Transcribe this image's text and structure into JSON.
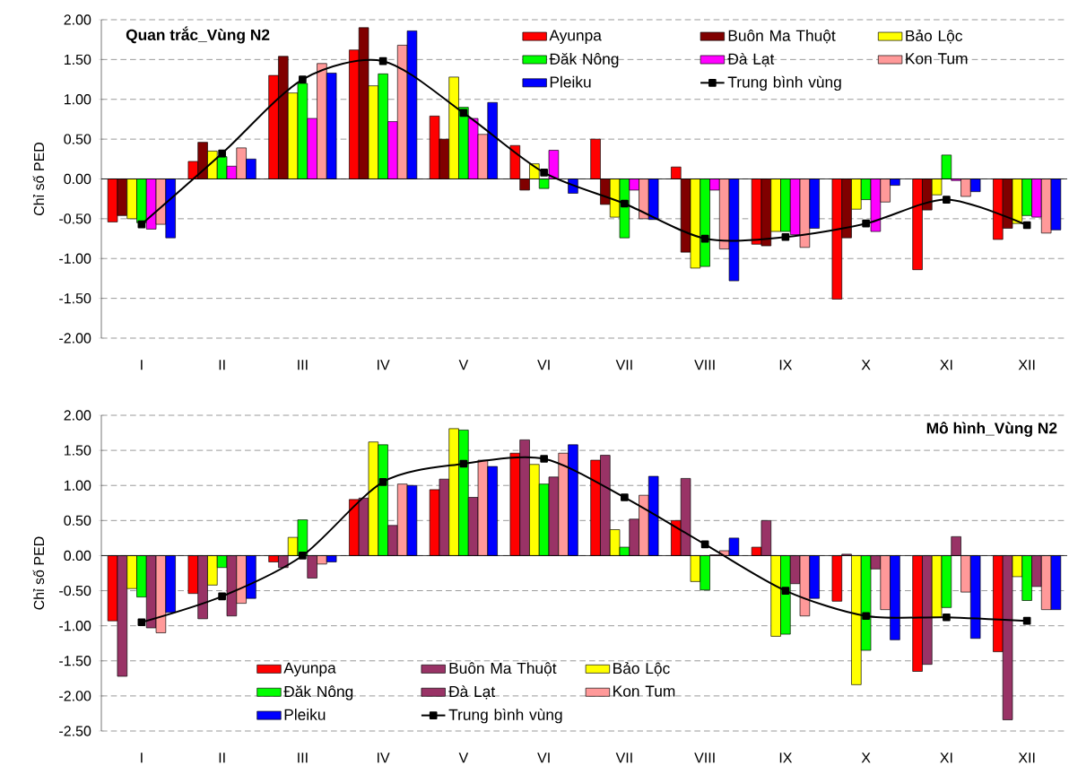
{
  "chart_data": [
    {
      "type": "bar",
      "title": "Quan trắc_Vùng N2",
      "ylabel": "Chỉ số PED",
      "categories": [
        "I",
        "II",
        "III",
        "IV",
        "V",
        "VI",
        "VII",
        "VIII",
        "IX",
        "X",
        "XI",
        "XII"
      ],
      "series": [
        {
          "name": "Ayunpa",
          "color": "#ff0000",
          "values": [
            -0.54,
            0.22,
            1.3,
            1.62,
            0.79,
            0.42,
            0.5,
            0.15,
            -0.82,
            -1.51,
            -1.14,
            -0.76
          ]
        },
        {
          "name": "Buôn Ma Thuột",
          "color": "#800000",
          "values": [
            -0.46,
            0.46,
            1.54,
            1.9,
            0.5,
            -0.14,
            -0.32,
            -0.92,
            -0.84,
            -0.74,
            -0.39,
            -0.62
          ]
        },
        {
          "name": "Bảo Lộc",
          "color": "#ffff00",
          "values": [
            -0.5,
            0.35,
            1.08,
            1.17,
            1.28,
            0.19,
            -0.48,
            -1.12,
            -0.66,
            -0.38,
            -0.2,
            -0.56
          ]
        },
        {
          "name": "Đăk Nông",
          "color": "#00ff00",
          "values": [
            -0.55,
            0.28,
            1.2,
            1.32,
            0.9,
            -0.12,
            -0.74,
            -1.1,
            -0.66,
            -0.26,
            0.3,
            -0.46
          ]
        },
        {
          "name": "Đà Lạt",
          "color": "#ff00ff",
          "values": [
            -0.63,
            0.16,
            0.76,
            0.72,
            0.76,
            0.36,
            -0.14,
            -0.14,
            -0.7,
            -0.66,
            -0.02,
            -0.48
          ]
        },
        {
          "name": "Kon Tum",
          "color": "#ff9999",
          "values": [
            -0.57,
            0.39,
            1.45,
            1.68,
            0.56,
            null,
            -0.5,
            -0.88,
            -0.86,
            -0.29,
            -0.22,
            -0.68
          ]
        },
        {
          "name": "Pleiku",
          "color": "#0000ff",
          "values": [
            -0.74,
            0.25,
            1.33,
            1.86,
            0.96,
            -0.18,
            -0.51,
            -1.28,
            -0.62,
            -0.08,
            -0.16,
            -0.64
          ]
        },
        {
          "name": "Trung bình vùng",
          "type": "line",
          "marker": "square",
          "color": "#000000",
          "values": [
            -0.57,
            0.32,
            1.25,
            1.48,
            0.83,
            0.08,
            -0.31,
            -0.75,
            -0.73,
            -0.56,
            -0.26,
            -0.58
          ]
        }
      ],
      "ylim": [
        -2,
        2
      ],
      "yticks": [
        {
          "value": -2,
          "label": "-2.00"
        },
        {
          "value": -1.5,
          "label": "-1.50"
        },
        {
          "value": -1,
          "label": "-1.00"
        },
        {
          "value": -0.5,
          "label": "-0.50"
        },
        {
          "value": 0,
          "label": "0.00"
        },
        {
          "value": 0.5,
          "label": "0.50"
        },
        {
          "value": 1,
          "label": "1.00"
        },
        {
          "value": 1.5,
          "label": "1.50"
        },
        {
          "value": 2,
          "label": "2.00"
        }
      ],
      "grid": "y",
      "legend": "top right"
    },
    {
      "type": "bar",
      "title": "Mô hình_Vùng N2",
      "ylabel": "Chỉ số PED",
      "categories": [
        "I",
        "II",
        "III",
        "IV",
        "V",
        "VI",
        "VII",
        "VIII",
        "IX",
        "X",
        "XI",
        "XII"
      ],
      "series": [
        {
          "name": "Ayunpa",
          "color": "#ff0000",
          "values": [
            -0.93,
            -0.54,
            -0.09,
            0.8,
            0.94,
            1.46,
            1.36,
            0.5,
            0.12,
            -0.65,
            -1.65,
            -1.37
          ]
        },
        {
          "name": "Buôn Ma Thuột",
          "color": "#993366",
          "values": [
            -1.72,
            -0.9,
            -0.17,
            0.82,
            1.09,
            1.65,
            1.43,
            1.1,
            0.5,
            0.02,
            -1.55,
            -2.34
          ]
        },
        {
          "name": "Bảo Lộc",
          "color": "#ffff00",
          "values": [
            -0.47,
            -0.42,
            0.26,
            1.62,
            1.81,
            1.3,
            0.37,
            -0.37,
            -1.15,
            -1.84,
            -0.88,
            -0.3
          ]
        },
        {
          "name": "Đăk Nông",
          "color": "#00ff00",
          "values": [
            -0.59,
            -0.17,
            0.51,
            1.58,
            1.79,
            1.02,
            0.12,
            -0.49,
            -1.12,
            -1.35,
            -0.74,
            -0.64
          ]
        },
        {
          "name": "Đà Lạt",
          "color": "#993366",
          "values": [
            -1.03,
            -0.86,
            -0.32,
            0.43,
            0.83,
            1.12,
            0.52,
            0.01,
            -0.4,
            -0.19,
            0.27,
            -0.44
          ]
        },
        {
          "name": "Kon Tum",
          "color": "#ff9999",
          "values": [
            -1.1,
            -0.68,
            -0.12,
            1.02,
            1.36,
            1.46,
            0.86,
            0.07,
            -0.86,
            -0.77,
            -0.52,
            -0.77
          ]
        },
        {
          "name": "Pleiku",
          "color": "#0000ff",
          "values": [
            -0.81,
            -0.61,
            -0.09,
            1.0,
            1.27,
            1.58,
            1.13,
            0.25,
            -0.61,
            -1.2,
            -1.18,
            -0.77
          ]
        },
        {
          "name": "Trung bình vùng",
          "type": "line",
          "marker": "square",
          "color": "#000000",
          "values": [
            -0.95,
            -0.58,
            0.0,
            1.05,
            1.31,
            1.38,
            0.83,
            0.16,
            -0.5,
            -0.86,
            -0.88,
            -0.93
          ]
        }
      ],
      "ylim": [
        -2.5,
        2
      ],
      "yticks": [
        {
          "value": -2.5,
          "label": "-2.50"
        },
        {
          "value": -2,
          "label": "-2.00"
        },
        {
          "value": -1.5,
          "label": "-1.50"
        },
        {
          "value": -1,
          "label": "-1.00"
        },
        {
          "value": -0.5,
          "label": "-0.50"
        },
        {
          "value": 0,
          "label": "0.00"
        },
        {
          "value": 0.5,
          "label": "0.50"
        },
        {
          "value": 1,
          "label": "1.00"
        },
        {
          "value": 1.5,
          "label": "1.50"
        },
        {
          "value": 2,
          "label": "2.00"
        }
      ],
      "grid": "y",
      "legend": "bottom left"
    }
  ]
}
